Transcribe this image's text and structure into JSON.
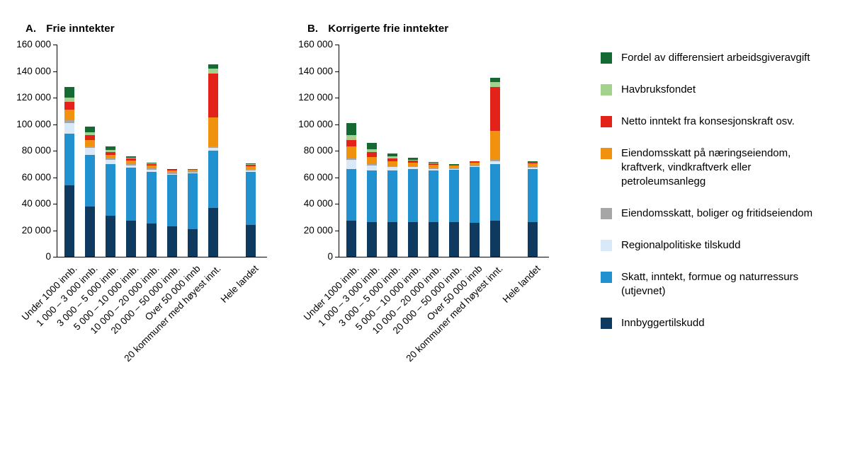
{
  "figure": {
    "background": "#ffffff",
    "text_color": "#000000"
  },
  "chart_data": [
    {
      "type": "bar",
      "stacked": true,
      "title_prefix": "A.",
      "title": "Frie inntekter",
      "ylim": [
        0,
        160000
      ],
      "ytick_step": 20000,
      "grid": false,
      "categories": [
        "Under 1000 innb.",
        "1 000 – 3 000 innb.",
        "3 000 – 5 000 innb.",
        "5 000 – 10 000 innb.",
        "10 000 – 20 000 innb.",
        "20 000 – 50 000 innb.",
        "Over 50 000 innb",
        "20 kommuner med høyest innt.",
        "Hele landet"
      ],
      "separated_last_category": true,
      "series": [
        {
          "name": "Innbyggertilskudd",
          "color": "#0d3a5e",
          "values": [
            54000,
            38000,
            31000,
            27000,
            25000,
            23000,
            21000,
            37000,
            24000
          ]
        },
        {
          "name": "Skatt, inntekt, formue og naturressurs (utjevnet)",
          "color": "#2191cf",
          "values": [
            39000,
            39000,
            39000,
            40000,
            39000,
            39000,
            42000,
            43000,
            40000
          ]
        },
        {
          "name": "Regionalpolitiske tilskudd",
          "color": "#d9e9f7",
          "values": [
            8000,
            5000,
            3000,
            2000,
            1500,
            500,
            300,
            2000,
            1000
          ]
        },
        {
          "name": "Eiendomsskatt, boliger og fritidseiendom",
          "color": "#a6a6a6",
          "values": [
            2000,
            1000,
            1000,
            1000,
            1000,
            1000,
            1000,
            1000,
            1000
          ]
        },
        {
          "name": "Eiendomsskatt på næringseiendom, kraftverk, vindkraftverk eller petroleumsanlegg",
          "color": "#f0920f",
          "values": [
            8000,
            5000,
            3000,
            2500,
            2500,
            1500,
            1500,
            22000,
            2500
          ]
        },
        {
          "name": "Netto inntekt fra konsesjonskraft osv.",
          "color": "#e32219",
          "values": [
            6000,
            4000,
            2000,
            1500,
            1000,
            500,
            500,
            33000,
            1000
          ]
        },
        {
          "name": "Havbruksfondet",
          "color": "#a4d18e",
          "values": [
            3000,
            2000,
            1500,
            500,
            300,
            0,
            0,
            4000,
            200
          ]
        },
        {
          "name": "Fordel av differensiert arbeidsgiveravgift",
          "color": "#156a33",
          "values": [
            8000,
            4000,
            2500,
            1500,
            700,
            500,
            0,
            3000,
            500
          ]
        }
      ]
    },
    {
      "type": "bar",
      "stacked": true,
      "title_prefix": "B.",
      "title": "Korrigerte frie inntekter",
      "ylim": [
        0,
        160000
      ],
      "ytick_step": 20000,
      "grid": false,
      "categories": [
        "Under 1000 innb.",
        "1 000 – 3 000 innb.",
        "3 000 – 5 000 innb.",
        "5 000 – 10 000 innb.",
        "10 000 – 20 000 innb.",
        "20 000 – 50 000 innb.",
        "Over 50 000 innb",
        "20 kommuner med høyest innt.",
        "Hele landet"
      ],
      "separated_last_category": true,
      "series": [
        {
          "name": "Innbyggertilskudd",
          "color": "#0d3a5e",
          "values": [
            27000,
            26000,
            26000,
            26000,
            26000,
            26000,
            25500,
            27000,
            26000
          ]
        },
        {
          "name": "Skatt, inntekt, formue og naturressurs (utjevnet)",
          "color": "#2191cf",
          "values": [
            39000,
            39000,
            39000,
            40000,
            39000,
            40000,
            42500,
            43000,
            40000
          ]
        },
        {
          "name": "Regionalpolitiske tilskudd",
          "color": "#d9e9f7",
          "values": [
            7000,
            4000,
            2500,
            1500,
            1000,
            300,
            200,
            2000,
            1000
          ]
        },
        {
          "name": "Eiendomsskatt, boliger og fritidseiendom",
          "color": "#a6a6a6",
          "values": [
            1000,
            1000,
            1000,
            1000,
            1000,
            1000,
            1000,
            1000,
            1000
          ]
        },
        {
          "name": "Eiendomsskatt på næringseiendom, kraftverk, vindkraftverk eller petroleumsanlegg",
          "color": "#f0920f",
          "values": [
            9000,
            5000,
            3500,
            2500,
            2500,
            1500,
            2000,
            22000,
            2500
          ]
        },
        {
          "name": "Netto inntekt fra konsesjonskraft osv.",
          "color": "#e32219",
          "values": [
            5000,
            4000,
            2000,
            1500,
            1000,
            500,
            1000,
            33000,
            1000
          ]
        },
        {
          "name": "Havbruksfondet",
          "color": "#a4d18e",
          "values": [
            4000,
            2000,
            1500,
            500,
            300,
            0,
            0,
            4000,
            200
          ]
        },
        {
          "name": "Fordel av differensiert arbeidsgiveravgift",
          "color": "#156a33",
          "values": [
            9000,
            5000,
            2500,
            1500,
            700,
            500,
            0,
            3000,
            500
          ]
        }
      ]
    }
  ],
  "y_axis_tick_labels": [
    "0",
    "20 000",
    "40 000",
    "60 000",
    "80 000",
    "100 000",
    "120 000",
    "140 000",
    "160 000"
  ],
  "legend": {
    "items": [
      {
        "label": "Fordel av differensiert arbeidsgiveravgift",
        "color": "#156a33"
      },
      {
        "label": "Havbruksfondet",
        "color": "#a4d18e"
      },
      {
        "label": "Netto inntekt fra konsesjonskraft osv.",
        "color": "#e32219"
      },
      {
        "label": "Eiendomsskatt på næringseiendom, kraftverk, vindkraftverk eller petroleumsanlegg",
        "color": "#f0920f"
      },
      {
        "label": "Eiendomsskatt, boliger og fritidseiendom",
        "color": "#a6a6a6"
      },
      {
        "label": "Regionalpolitiske tilskudd",
        "color": "#d9e9f7"
      },
      {
        "label": "Skatt, inntekt, formue og naturressurs (utjevnet)",
        "color": "#2191cf"
      },
      {
        "label": "Innbyggertilskudd",
        "color": "#0d3a5e"
      }
    ]
  }
}
